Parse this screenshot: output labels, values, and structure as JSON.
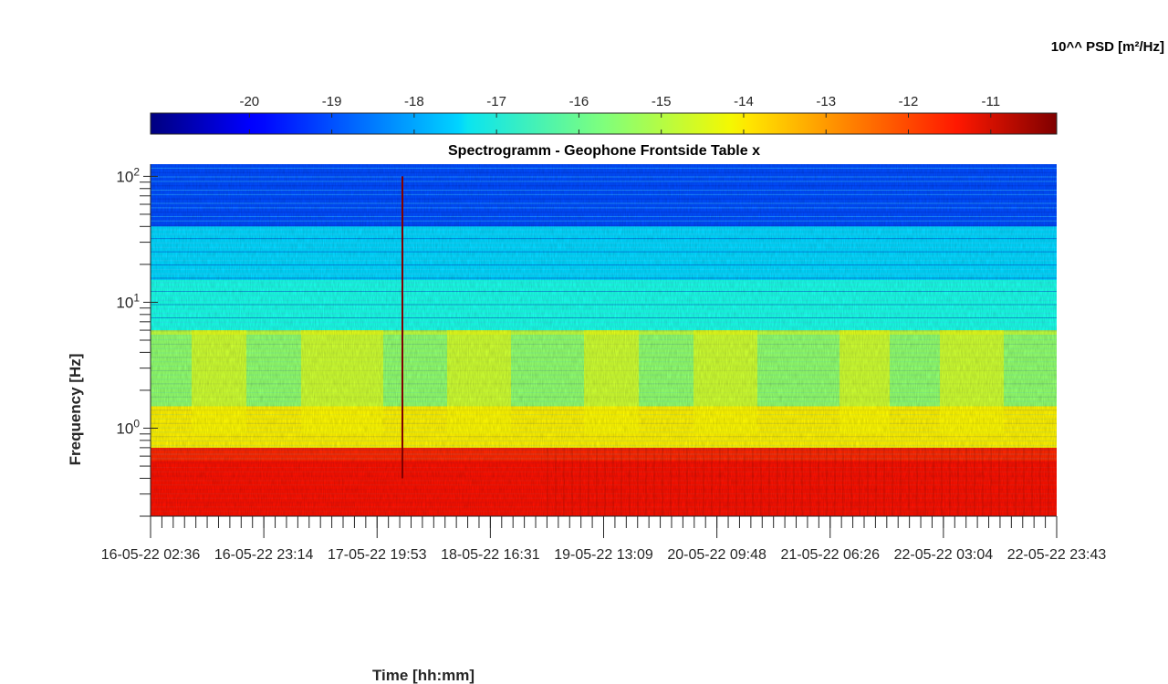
{
  "colorbar": {
    "title": "10^^ PSD [m²/Hz]",
    "ticks": [
      "-20",
      "-19",
      "-18",
      "-17",
      "-16",
      "-15",
      "-14",
      "-13",
      "-12",
      "-11"
    ],
    "tick_values": [
      -20,
      -19,
      -18,
      -17,
      -16,
      -15,
      -14,
      -13,
      -12,
      -11
    ],
    "range": [
      -21.2,
      -10.2
    ],
    "colormap": "jet"
  },
  "chart_data": {
    "type": "heatmap",
    "title": "Spectrogramm - Geophone Frontside Table x",
    "xlabel": "Time [hh:mm]",
    "ylabel": "Frequency [Hz]",
    "y_scale": "log",
    "ylim": [
      0.2,
      125
    ],
    "y_ticks": [
      {
        "base": "10",
        "exp": "0",
        "value": 1
      },
      {
        "base": "10",
        "exp": "1",
        "value": 10
      },
      {
        "base": "10",
        "exp": "2",
        "value": 100
      }
    ],
    "x_tick_labels": [
      "16-05-22 02:36",
      "16-05-22 23:14",
      "17-05-22 19:53",
      "18-05-22 16:31",
      "19-05-22 13:09",
      "20-05-22 09:48",
      "21-05-22 06:26",
      "22-05-22 03:04",
      "22-05-22 23:43"
    ],
    "z_label": "10^^ PSD [m²/Hz]",
    "z_range": [
      -21.2,
      -10.2
    ],
    "bands": [
      {
        "f_low": 0.2,
        "f_high": 0.7,
        "psd_log10": -12.0
      },
      {
        "f_low": 0.7,
        "f_high": 1.5,
        "psd_log10": -14.2
      },
      {
        "f_low": 1.5,
        "f_high": 5.5,
        "psd_log10": -15.5
      },
      {
        "f_low": 5.5,
        "f_high": 6.0,
        "psd_log10": -15.0
      },
      {
        "f_low": 6.0,
        "f_high": 15,
        "psd_log10": -16.8
      },
      {
        "f_low": 15,
        "f_high": 40,
        "psd_log10": -17.5
      },
      {
        "f_low": 40,
        "f_high": 125,
        "psd_log10": -19.0
      }
    ]
  }
}
